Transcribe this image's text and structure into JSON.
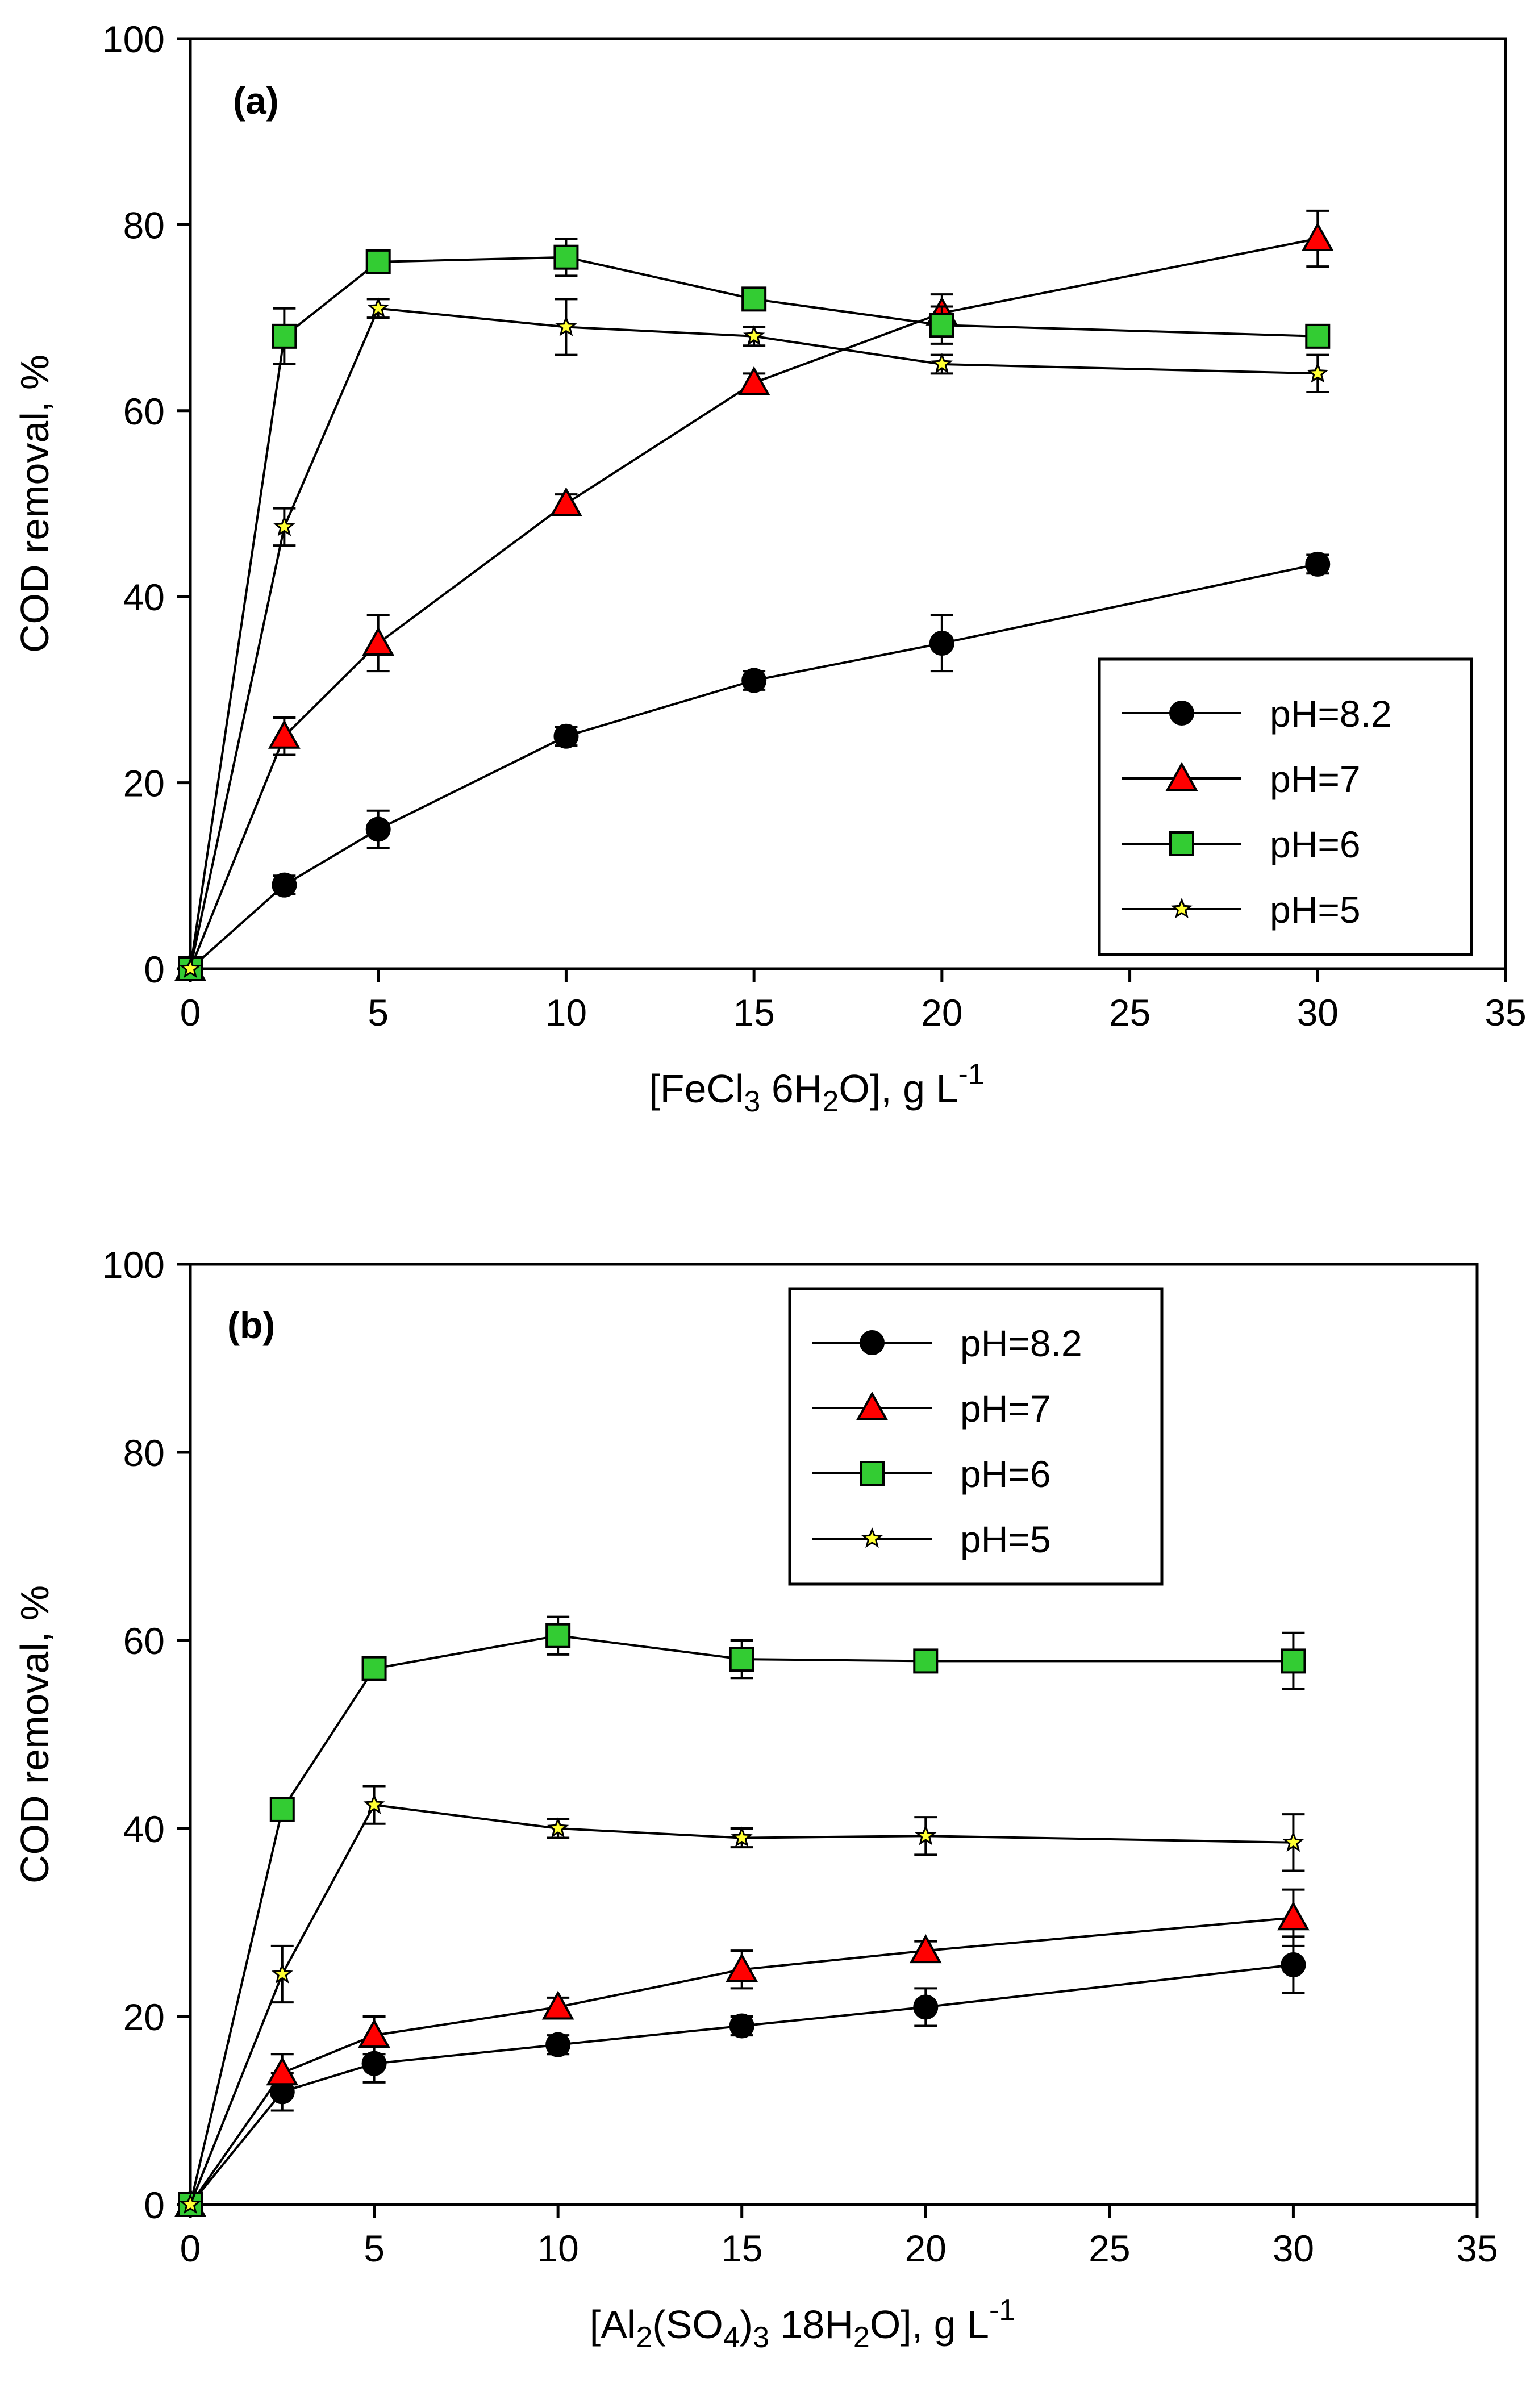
{
  "chart_data": [
    {
      "type": "line",
      "panel_label": "(a)",
      "title": "",
      "xlabel_parts": [
        "[FeCl",
        "3",
        " 6H",
        "2",
        "O], g L",
        "-1"
      ],
      "ylabel": "COD removal, %",
      "xlim": [
        0,
        35
      ],
      "ylim": [
        0,
        100
      ],
      "xticks": [
        0,
        5,
        10,
        15,
        20,
        25,
        30,
        35
      ],
      "yticks": [
        0,
        20,
        40,
        60,
        80,
        100
      ],
      "legend_position": "center-right",
      "x": [
        0,
        2.5,
        5,
        10,
        15,
        20,
        30
      ],
      "series": [
        {
          "name": "pH=8.2",
          "marker": "circle",
          "color": "#000000",
          "values": [
            0,
            9,
            15,
            25,
            31,
            35,
            43.5
          ],
          "errors": [
            0,
            1,
            2,
            1,
            1,
            3,
            1
          ]
        },
        {
          "name": "pH=7",
          "marker": "triangle",
          "color": "#ff0000",
          "values": [
            0,
            25,
            35,
            50,
            63,
            70.5,
            78.5
          ],
          "errors": [
            0,
            2,
            3,
            1,
            1,
            2,
            3
          ]
        },
        {
          "name": "pH=6",
          "marker": "square",
          "color": "#33cc33",
          "values": [
            0,
            68,
            76,
            76.5,
            72,
            69.2,
            68
          ],
          "errors": [
            0,
            3,
            1,
            2,
            1,
            2,
            1
          ]
        },
        {
          "name": "pH=5",
          "marker": "star",
          "color": "#ffff33",
          "values": [
            0,
            47.5,
            71,
            69,
            68,
            65,
            64
          ],
          "errors": [
            0,
            2,
            1,
            3,
            1,
            1,
            2
          ]
        }
      ]
    },
    {
      "type": "line",
      "panel_label": "(b)",
      "title": "",
      "xlabel_parts": [
        "[Al",
        "2",
        "(SO",
        "4",
        ")",
        "3",
        " 18H",
        "2",
        "O], g L",
        "-1"
      ],
      "ylabel": "COD removal, %",
      "xlim": [
        0,
        35
      ],
      "ylim": [
        0,
        100
      ],
      "xticks": [
        0,
        5,
        10,
        15,
        20,
        25,
        30,
        35
      ],
      "yticks": [
        0,
        20,
        40,
        60,
        80,
        100
      ],
      "legend_position": "top-center",
      "x": [
        0,
        2.5,
        5,
        10,
        15,
        20,
        30
      ],
      "series": [
        {
          "name": "pH=8.2",
          "marker": "circle",
          "color": "#000000",
          "values": [
            0,
            12,
            15,
            17,
            19,
            21,
            25.5
          ],
          "errors": [
            0,
            2,
            2,
            1,
            1,
            2,
            3
          ]
        },
        {
          "name": "pH=7",
          "marker": "triangle",
          "color": "#ff0000",
          "values": [
            0,
            14,
            18,
            21,
            25,
            27,
            30.5
          ],
          "errors": [
            0,
            2,
            2,
            1,
            2,
            1,
            3
          ]
        },
        {
          "name": "pH=6",
          "marker": "square",
          "color": "#33cc33",
          "values": [
            0,
            42,
            57,
            60.5,
            58,
            57.8,
            57.8
          ],
          "errors": [
            0,
            1,
            1,
            2,
            2,
            1,
            3
          ]
        },
        {
          "name": "pH=5",
          "marker": "star",
          "color": "#ffff33",
          "values": [
            0,
            24.5,
            42.5,
            40,
            39,
            39.2,
            38.5
          ],
          "errors": [
            0,
            3,
            2,
            1,
            1,
            2,
            3
          ]
        }
      ]
    }
  ]
}
